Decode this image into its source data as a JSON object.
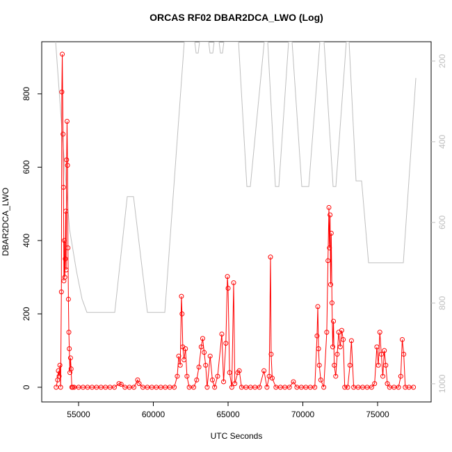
{
  "chart_data": {
    "type": "line",
    "title": "ORCAS RF02 DBAR2DCA_LWO (Log)",
    "xlabel": "UTC Seconds",
    "ylabel": "DBAR2DCA_LWO",
    "xlim": [
      52535,
      78581
    ],
    "ylim": [
      -40,
      942
    ],
    "y2lim": [
      1045,
      152
    ],
    "xticks": [
      55000,
      60000,
      65000,
      70000,
      75000
    ],
    "yticks": [
      0,
      200,
      400,
      600,
      800
    ],
    "y2ticks": [
      200,
      400,
      600,
      800,
      1000
    ],
    "series": [
      {
        "color": "#ff0000",
        "axis": "y",
        "markers": true,
        "x": [
          53500,
          53600,
          53650,
          53700,
          53750,
          53800,
          53850,
          53880,
          53910,
          53960,
          53990,
          54020,
          54050,
          54080,
          54110,
          54140,
          54170,
          54200,
          54230,
          54260,
          54290,
          54320,
          54350,
          54380,
          54420,
          54460,
          54500,
          54550,
          54600,
          54700,
          55000,
          55300,
          55600,
          55900,
          56200,
          56500,
          56800,
          57100,
          57400,
          57700,
          57850,
          58100,
          58400,
          58700,
          58950,
          59050,
          59300,
          59600,
          59900,
          60200,
          60500,
          60800,
          61100,
          61400,
          61600,
          61700,
          61800,
          61880,
          61920,
          61970,
          62050,
          62150,
          62250,
          62400,
          62700,
          62900,
          63050,
          63200,
          63300,
          63400,
          63500,
          63600,
          63800,
          63950,
          64100,
          64300,
          64580,
          64700,
          64850,
          64955,
          65000,
          65100,
          65250,
          65372,
          65450,
          65650,
          65750,
          65900,
          66200,
          66500,
          66800,
          67100,
          67400,
          67600,
          67750,
          67836,
          67880,
          67950,
          68200,
          68500,
          68800,
          69100,
          69370,
          69600,
          69900,
          70200,
          70500,
          70800,
          70950,
          71000,
          71050,
          71100,
          71200,
          71400,
          71600,
          71680,
          71744,
          71780,
          71820,
          71860,
          71900,
          71950,
          72000,
          72050,
          72100,
          72200,
          72300,
          72400,
          72500,
          72600,
          72700,
          72800,
          73000,
          73150,
          73250,
          73400,
          73700,
          74000,
          74300,
          74600,
          74800,
          74950,
          75050,
          75150,
          75250,
          75350,
          75450,
          75550,
          75650,
          75800,
          76100,
          76400,
          76550,
          76650,
          76750,
          76850,
          77100,
          77400
        ],
        "values": [
          0,
          20,
          45,
          30,
          60,
          0,
          260,
          805,
          908,
          690,
          545,
          290,
          400,
          300,
          350,
          480,
          320,
          620,
          725,
          605,
          380,
          240,
          150,
          105,
          40,
          80,
          50,
          0,
          0,
          0,
          0,
          0,
          0,
          0,
          0,
          0,
          0,
          0,
          0,
          10,
          8,
          0,
          0,
          0,
          20,
          10,
          0,
          0,
          0,
          0,
          0,
          0,
          0,
          0,
          30,
          85,
          60,
          248,
          200,
          110,
          75,
          105,
          30,
          0,
          0,
          20,
          55,
          110,
          133,
          95,
          60,
          0,
          85,
          20,
          0,
          30,
          145,
          15,
          120,
          302,
          270,
          40,
          0,
          285,
          10,
          40,
          45,
          0,
          0,
          0,
          0,
          0,
          45,
          0,
          30,
          355,
          90,
          25,
          0,
          0,
          0,
          0,
          15,
          0,
          0,
          0,
          0,
          0,
          140,
          220,
          105,
          60,
          20,
          0,
          150,
          345,
          490,
          380,
          470,
          280,
          420,
          230,
          110,
          180,
          60,
          30,
          90,
          150,
          110,
          155,
          130,
          0,
          0,
          60,
          127,
          0,
          0,
          0,
          0,
          0,
          10,
          110,
          60,
          150,
          90,
          30,
          100,
          60,
          10,
          0,
          0,
          0,
          30,
          130,
          90,
          0,
          0,
          0
        ]
      },
      {
        "color": "#bebebe",
        "axis": "y2",
        "markers": false,
        "x": [
          53465,
          53930,
          54395,
          54860,
          55233,
          55558,
          57419,
          58256,
          58674,
          59604,
          60767,
          62070,
          62767,
          62860,
          63000,
          63093,
          63698,
          63791,
          63977,
          64070,
          64395,
          64488,
          64628,
          64721,
          65698,
          66256,
          66488,
          67419,
          67651,
          68163,
          68395,
          69047,
          69279,
          69930,
          70395,
          71140,
          71419,
          72023,
          72209,
          72907,
          73093,
          73558,
          73930,
          74395,
          76721,
          77558
        ],
        "values": [
          152,
          393,
          617,
          721,
          790,
          823,
          823,
          536,
          536,
          823,
          823,
          152,
          152,
          180,
          180,
          152,
          152,
          180,
          180,
          152,
          152,
          180,
          180,
          152,
          152,
          511,
          511,
          152,
          152,
          511,
          511,
          152,
          152,
          511,
          511,
          152,
          152,
          511,
          511,
          152,
          152,
          497,
          497,
          700,
          700,
          242
        ]
      }
    ]
  }
}
